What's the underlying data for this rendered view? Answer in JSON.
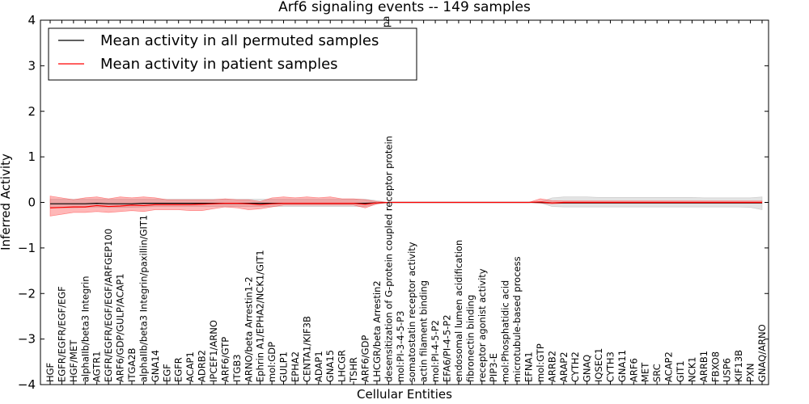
{
  "chart_data": {
    "type": "line",
    "title": "Arf6 signaling events -- 149 samples",
    "xlabel": "Cellular Entities",
    "ylabel": "Inferred Activity",
    "ylim": [
      -4,
      4
    ],
    "yticks": [
      -4,
      -3,
      -2,
      -1,
      0,
      1,
      2,
      3,
      4
    ],
    "yticklabels": [
      "−4",
      "−3",
      "−2",
      "−1",
      "0",
      "1",
      "2",
      "3",
      "4"
    ],
    "legend_position": "top-left",
    "categories": [
      "HGF",
      "EGFR/EGFR/EGF/EGF",
      "HGF/MET",
      "alphaIIb/beta3 Integrin",
      "AGTR1",
      "EGFR/EGFR/EGF/EGF/ARFGEP100",
      "ARF6/GDP/GULP/ACAP1",
      "ITGA2B",
      "alphaIIb/beta3 Integrin/paxillin/GIT1",
      "GNA14",
      "EGF",
      "EGFR",
      "ACAP1",
      "ADRB2",
      "IPCEF1/ARNO",
      "ARF6/GTP",
      "ITGB3",
      "ARNO/beta Arrestin1-2",
      "Ephrin A1/EPHA2/NCK1/GIT1",
      "mol:GDP",
      "GULP1",
      "EPHA2",
      "CENTA1/KIF3B",
      "ADAP1",
      "GNA15",
      "LHCGR",
      "TSHR",
      "ARF6/GDP",
      "LHCGR/beta Arrestin2",
      "desensitization of G-protein coupled receptor protein",
      "mol:PI-3-4-5-P3",
      "somatostatin receptor activity",
      "actin filament binding",
      "mol:PI-4-5-P2",
      "EFA6/PI-4-5-P2",
      "endosomal lumen acidification",
      "fibronectin binding",
      "receptor agonist activity",
      "PIP3-E",
      "mol:Phosphatidic acid",
      "microtubule-based process",
      "EFNA1",
      "mol:GTP",
      "ARRB2",
      "ARAP2",
      "CYTH2",
      "GNAQ",
      "IQSEC1",
      "CYTH3",
      "GNA11",
      "ARF6",
      "MET",
      "SRC",
      "ACAP2",
      "GIT1",
      "NCK1",
      "ARRB1",
      "FBXO8",
      "USP6",
      "KIF13B",
      "PXN",
      "GNAQ/ARNO"
    ],
    "category_overflow": "pa",
    "series": [
      {
        "name": "Mean activity in all permuted samples",
        "color": "#000000",
        "values": [
          -0.03,
          -0.03,
          -0.03,
          -0.03,
          -0.02,
          -0.03,
          -0.03,
          -0.03,
          -0.02,
          -0.02,
          -0.02,
          -0.02,
          -0.02,
          -0.02,
          -0.02,
          -0.02,
          -0.02,
          -0.02,
          -0.02,
          -0.02,
          -0.02,
          -0.02,
          -0.02,
          -0.02,
          -0.02,
          -0.02,
          -0.02,
          -0.02,
          -0.01,
          0,
          0,
          0,
          0,
          0,
          0,
          0,
          0,
          0,
          0,
          0,
          0,
          0,
          0,
          -0.01,
          -0.01,
          -0.01,
          -0.01,
          -0.01,
          -0.01,
          -0.01,
          -0.01,
          -0.01,
          -0.01,
          -0.01,
          -0.01,
          -0.01,
          -0.01,
          -0.01,
          -0.01,
          -0.01,
          -0.01,
          -0.01
        ],
        "band_lower": [
          -0.12,
          -0.12,
          -0.12,
          -0.11,
          -0.1,
          -0.11,
          -0.11,
          -0.11,
          -0.1,
          -0.09,
          -0.09,
          -0.09,
          -0.09,
          -0.09,
          -0.09,
          -0.09,
          -0.09,
          -0.09,
          -0.09,
          -0.09,
          -0.09,
          -0.09,
          -0.09,
          -0.09,
          -0.09,
          -0.09,
          -0.09,
          -0.09,
          -0.04,
          0,
          0,
          0,
          0,
          0,
          0,
          0,
          0,
          0,
          0,
          0,
          0,
          0,
          -0.01,
          -0.09,
          -0.1,
          -0.1,
          -0.1,
          -0.1,
          -0.1,
          -0.1,
          -0.1,
          -0.1,
          -0.1,
          -0.1,
          -0.1,
          -0.1,
          -0.1,
          -0.1,
          -0.1,
          -0.1,
          -0.11,
          -0.16
        ],
        "band_upper": [
          0.07,
          0.07,
          0.07,
          0.07,
          0.07,
          0.07,
          0.07,
          0.07,
          0.07,
          0.07,
          0.07,
          0.07,
          0.07,
          0.07,
          0.07,
          0.07,
          0.07,
          0.07,
          0.07,
          0.07,
          0.07,
          0.07,
          0.07,
          0.07,
          0.07,
          0.07,
          0.07,
          0.07,
          0.04,
          0,
          0,
          0,
          0,
          0,
          0,
          0,
          0,
          0,
          0,
          0,
          0,
          0,
          0.01,
          0.1,
          0.12,
          0.12,
          0.12,
          0.11,
          0.11,
          0.11,
          0.11,
          0.11,
          0.11,
          0.11,
          0.11,
          0.11,
          0.1,
          0.1,
          0.1,
          0.1,
          0.1,
          0.12
        ]
      },
      {
        "name": "Mean activity in patient samples",
        "color": "#ff0000",
        "values": [
          -0.12,
          -0.11,
          -0.1,
          -0.1,
          -0.07,
          -0.09,
          -0.08,
          -0.06,
          -0.07,
          -0.05,
          -0.05,
          -0.05,
          -0.05,
          -0.04,
          -0.03,
          -0.02,
          -0.02,
          -0.03,
          -0.05,
          -0.03,
          -0.02,
          -0.02,
          -0.02,
          -0.02,
          -0.02,
          -0.02,
          -0.02,
          -0.04,
          -0.01,
          0,
          0,
          0,
          0,
          0,
          0,
          0,
          0,
          0,
          0,
          0,
          0,
          0,
          0.01,
          -0.01,
          0,
          0,
          0,
          0,
          0,
          0,
          0,
          0,
          0,
          0,
          0,
          0,
          0,
          0,
          0,
          0,
          0,
          0
        ],
        "band_lower": [
          -0.3,
          -0.26,
          -0.22,
          -0.22,
          -0.2,
          -0.22,
          -0.2,
          -0.18,
          -0.2,
          -0.16,
          -0.16,
          -0.16,
          -0.18,
          -0.18,
          -0.14,
          -0.1,
          -0.12,
          -0.16,
          -0.14,
          -0.1,
          -0.06,
          -0.06,
          -0.06,
          -0.06,
          -0.06,
          -0.06,
          -0.06,
          -0.12,
          -0.03,
          0,
          0,
          0,
          0,
          0,
          0,
          0,
          0,
          0,
          0,
          0,
          0,
          0,
          -0.02,
          -0.03,
          -0.02,
          -0.02,
          -0.02,
          -0.02,
          -0.02,
          -0.02,
          -0.02,
          -0.02,
          -0.02,
          -0.02,
          -0.02,
          -0.02,
          -0.02,
          -0.02,
          -0.02,
          -0.02,
          -0.02,
          -0.02
        ],
        "band_upper": [
          0.14,
          0.1,
          0.06,
          0.1,
          0.12,
          0.08,
          0.12,
          0.1,
          0.12,
          0.1,
          0.06,
          0.06,
          0.06,
          0.06,
          0.06,
          0.08,
          0.06,
          0.06,
          0.02,
          0.1,
          0.12,
          0.1,
          0.12,
          0.1,
          0.12,
          0.08,
          0.08,
          0.06,
          0.02,
          0,
          0,
          0,
          0,
          0,
          0,
          0,
          0,
          0,
          0,
          0,
          0,
          0,
          0.08,
          0.04,
          0.03,
          0.03,
          0.03,
          0.03,
          0.03,
          0.03,
          0.03,
          0.03,
          0.03,
          0.03,
          0.03,
          0.03,
          0.03,
          0.03,
          0.03,
          0.03,
          0.03,
          0.03
        ]
      }
    ]
  }
}
